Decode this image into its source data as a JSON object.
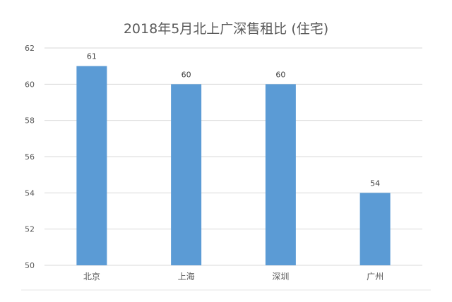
{
  "chart_data": {
    "type": "bar",
    "title": "2018年5月北上广深售租比 (住宅)",
    "xlabel": "",
    "ylabel": "",
    "categories": [
      "北京",
      "上海",
      "深圳",
      "广州"
    ],
    "values": [
      61,
      60,
      60,
      54
    ],
    "data_labels": [
      "61",
      "60",
      "60",
      "54"
    ],
    "ylim": [
      50,
      62
    ],
    "yticks": [
      "50",
      "52",
      "54",
      "56",
      "58",
      "60",
      "62"
    ],
    "grid": true,
    "legend": "none",
    "colors": {
      "bar": "#5b9bd5",
      "grid": "#d9d9d9",
      "axis": "#d9d9d9"
    }
  }
}
